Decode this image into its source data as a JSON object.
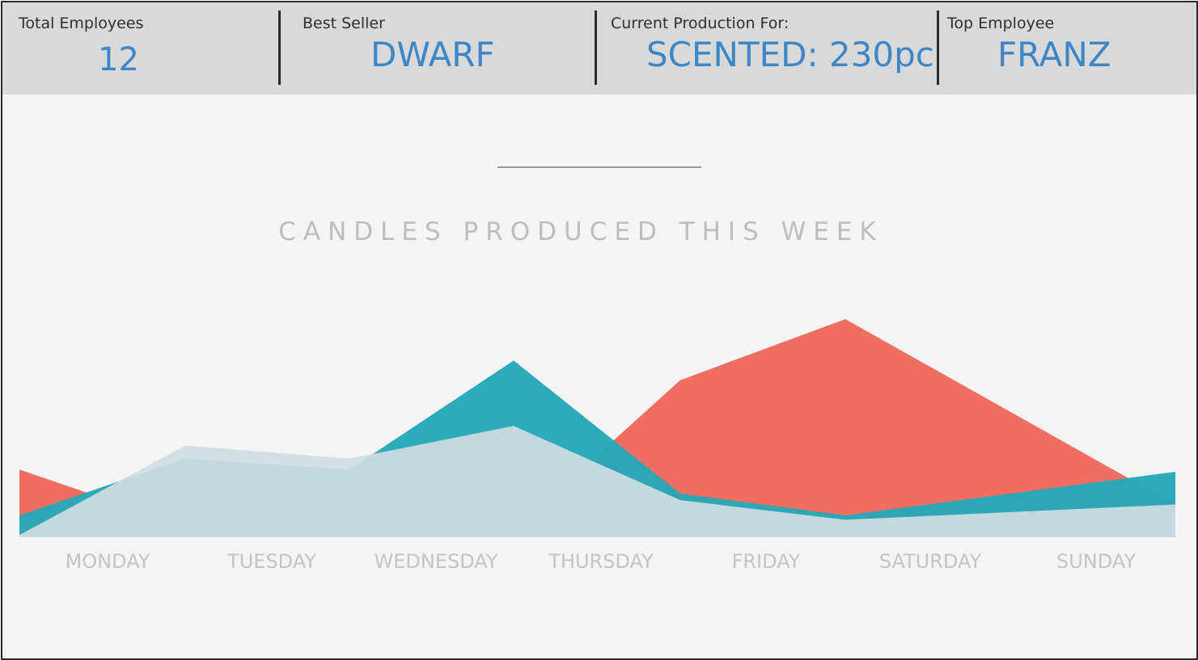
{
  "kpis": [
    {
      "label": "Total Employees",
      "value": "12"
    },
    {
      "label": "Best Seller",
      "value": "DWARF"
    },
    {
      "label": "Current Production For:",
      "value": "SCENTED: 230pc"
    },
    {
      "label": "Top Employee",
      "value": "FRANZ"
    }
  ],
  "chart_data": {
    "type": "area",
    "title": "CANDLES PRODUCED THIS  WEEK",
    "categories": [
      "MONDAY",
      "TUESDAY",
      "WEDNESDAY",
      "THURSDAY",
      "FRIDAY",
      "SATURDAY",
      "SUNDAY"
    ],
    "series": [
      {
        "color": "#ee6e62",
        "values": [
          0.31,
          0.05,
          0.02,
          0.03,
          0.72,
          1.0,
          0.15
        ]
      },
      {
        "color": "#27a8b8",
        "values": [
          0.1,
          0.36,
          0.31,
          0.81,
          0.2,
          0.1,
          0.3
        ]
      },
      {
        "color": "#cfdde1",
        "values": [
          0.01,
          0.42,
          0.36,
          0.51,
          0.17,
          0.08,
          0.15
        ]
      }
    ],
    "ylim": [
      0,
      1
    ],
    "grid": false,
    "legend": "none"
  }
}
